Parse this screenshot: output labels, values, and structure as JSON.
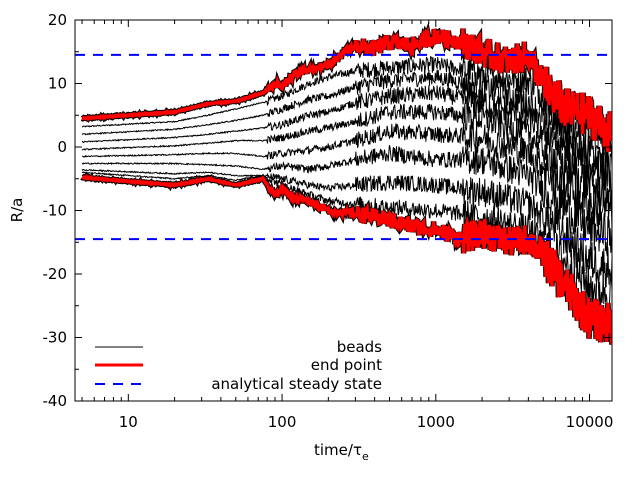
{
  "chart_data": {
    "type": "line",
    "xscale": "log",
    "xlim": [
      4.5,
      14000
    ],
    "ylim": [
      -40,
      20
    ],
    "xticks": [
      10,
      100,
      1000,
      10000
    ],
    "xtick_labels": [
      "10",
      "100",
      "1000",
      "10000"
    ],
    "yticks": [
      -40,
      -30,
      -20,
      -10,
      0,
      10,
      20
    ],
    "ytick_labels": [
      "-40",
      "-30",
      "-20",
      "-10",
      "0",
      "10",
      "20"
    ],
    "xlabel_main": "time/τ",
    "xlabel_sub": "e",
    "ylabel": "R/a",
    "legend_position": "bottom-center",
    "legend": [
      {
        "label": "beads",
        "color": "#000000",
        "style": "solid-thin"
      },
      {
        "label": "end point",
        "color": "#ff0000",
        "style": "solid-thick"
      },
      {
        "label": "analytical steady state",
        "color": "#0000ff",
        "style": "dashed"
      }
    ],
    "steady_state_levels": [
      14.5,
      -14.5
    ],
    "series": [
      {
        "role": "end-point-upper",
        "x": [
          5,
          20,
          33,
          50,
          75,
          90,
          100,
          120,
          150,
          200,
          300,
          400,
          500,
          700,
          1000,
          1500,
          2000,
          3000,
          4000,
          5000,
          7000,
          10000,
          14000
        ],
        "values": [
          4.5,
          5.5,
          6.8,
          7.2,
          8.5,
          10.0,
          9.5,
          11.5,
          12.0,
          13.0,
          16.0,
          15.5,
          16.5,
          16.0,
          17.5,
          16.5,
          15.0,
          13.5,
          14.5,
          10.0,
          6.0,
          5.0,
          2.0
        ]
      },
      {
        "role": "end-point-lower",
        "x": [
          5,
          20,
          33,
          50,
          75,
          90,
          100,
          120,
          150,
          200,
          300,
          400,
          500,
          700,
          1000,
          1500,
          2000,
          3000,
          4000,
          5000,
          7000,
          10000,
          14000
        ],
        "values": [
          -4.8,
          -6.0,
          -5.0,
          -6.0,
          -5.0,
          -7.5,
          -6.5,
          -8.0,
          -8.5,
          -10.0,
          -10.5,
          -11.0,
          -11.5,
          -12.5,
          -13.0,
          -14.5,
          -13.5,
          -15.0,
          -14.5,
          -17.0,
          -22.0,
          -27.0,
          -28.0
        ]
      },
      {
        "role": "bead",
        "x": [
          5,
          20,
          33,
          50,
          75,
          100,
          150,
          200,
          300,
          500,
          1000,
          2000,
          4000,
          7000,
          10000,
          14000
        ],
        "values": [
          3.2,
          4.0,
          5.0,
          6.0,
          7.0,
          8.0,
          10.0,
          11.0,
          12.0,
          12.5,
          13.0,
          11.5,
          10.5,
          5.0,
          3.0,
          1.0
        ]
      },
      {
        "role": "bead",
        "x": [
          5,
          20,
          33,
          50,
          75,
          100,
          150,
          200,
          300,
          500,
          1000,
          2000,
          4000,
          7000,
          10000,
          14000
        ],
        "values": [
          2.0,
          2.8,
          3.5,
          4.2,
          5.0,
          6.0,
          7.5,
          8.0,
          9.5,
          10.5,
          11.0,
          9.5,
          7.0,
          2.5,
          0.0,
          -1.5
        ]
      },
      {
        "role": "bead",
        "x": [
          5,
          20,
          33,
          50,
          75,
          100,
          150,
          200,
          300,
          500,
          1000,
          2000,
          4000,
          7000,
          10000,
          14000
        ],
        "values": [
          0.8,
          1.5,
          2.0,
          2.5,
          3.0,
          3.5,
          5.0,
          5.5,
          7.0,
          8.0,
          8.5,
          7.0,
          4.5,
          0.0,
          -3.0,
          -4.0
        ]
      },
      {
        "role": "bead",
        "x": [
          5,
          20,
          33,
          50,
          75,
          100,
          150,
          200,
          300,
          500,
          1000,
          2000,
          4000,
          7000,
          10000,
          14000
        ],
        "values": [
          -0.4,
          0.2,
          0.6,
          1.0,
          1.0,
          1.5,
          2.5,
          3.0,
          4.0,
          5.5,
          5.5,
          4.5,
          2.0,
          -3.0,
          -6.0,
          -7.0
        ]
      },
      {
        "role": "bead",
        "x": [
          5,
          20,
          33,
          50,
          75,
          100,
          150,
          200,
          300,
          500,
          1000,
          2000,
          4000,
          7000,
          10000,
          14000
        ],
        "values": [
          -1.5,
          -1.2,
          -1.0,
          -1.0,
          -1.5,
          -1.0,
          -0.5,
          0.0,
          1.0,
          2.5,
          2.0,
          1.5,
          -1.0,
          -6.0,
          -9.0,
          -10.0
        ]
      },
      {
        "role": "bead",
        "x": [
          5,
          20,
          33,
          50,
          75,
          100,
          150,
          200,
          300,
          500,
          1000,
          2000,
          4000,
          7000,
          10000,
          14000
        ],
        "values": [
          -2.6,
          -2.6,
          -2.8,
          -3.0,
          -3.5,
          -3.0,
          -3.5,
          -3.0,
          -2.0,
          -1.0,
          -2.0,
          -2.0,
          -4.5,
          -9.5,
          -13.0,
          -14.0
        ]
      },
      {
        "role": "bead",
        "x": [
          5,
          20,
          33,
          50,
          75,
          100,
          150,
          200,
          300,
          500,
          1000,
          2000,
          4000,
          7000,
          10000,
          14000
        ],
        "values": [
          -3.6,
          -4.2,
          -4.0,
          -4.5,
          -4.5,
          -5.0,
          -6.0,
          -6.5,
          -6.0,
          -5.5,
          -6.0,
          -7.0,
          -9.0,
          -14.0,
          -18.0,
          -19.0
        ]
      },
      {
        "role": "bead",
        "x": [
          5,
          20,
          33,
          50,
          75,
          100,
          150,
          200,
          300,
          500,
          1000,
          2000,
          4000,
          7000,
          10000,
          14000
        ],
        "values": [
          -4.0,
          -5.0,
          -4.5,
          -5.2,
          -4.5,
          -6.0,
          -7.5,
          -8.5,
          -9.0,
          -9.5,
          -10.0,
          -11.0,
          -13.0,
          -18.0,
          -22.0,
          -23.0
        ]
      }
    ]
  }
}
